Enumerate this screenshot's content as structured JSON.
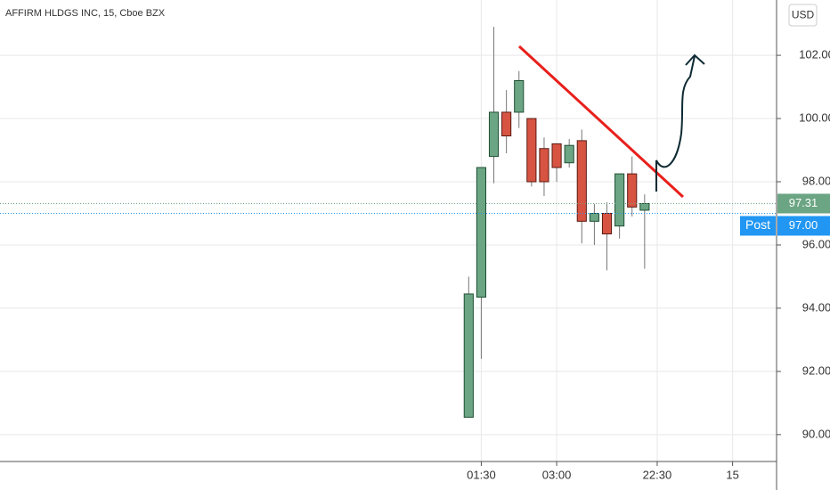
{
  "chart_data": {
    "type": "candlestick",
    "title": "AFFIRM HLDGS INC, 15, Cboe BZX",
    "currency": "USD",
    "x": [
      0,
      1,
      2,
      3,
      4,
      5,
      6,
      7,
      8,
      9,
      10,
      11,
      12,
      13,
      14
    ],
    "xlim": [
      -37.3,
      24.5
    ],
    "xticks": [
      {
        "value": 1,
        "label": "01:30"
      },
      {
        "value": 7,
        "label": "03:00"
      },
      {
        "value": 15,
        "label": "22:30"
      },
      {
        "value": 21,
        "label": "15"
      }
    ],
    "open": [
      90.55,
      94.35,
      98.8,
      100.2,
      100.2,
      100.0,
      99.05,
      99.2,
      98.6,
      99.3,
      96.75,
      97.0,
      96.6,
      98.25,
      97.1
    ],
    "high": [
      95.0,
      98.45,
      102.9,
      100.9,
      101.5,
      100.0,
      99.4,
      99.2,
      99.35,
      99.65,
      97.3,
      97.35,
      98.25,
      98.8,
      97.6
    ],
    "low": [
      90.55,
      92.4,
      97.95,
      98.9,
      99.7,
      97.85,
      97.55,
      98.0,
      98.45,
      96.05,
      96.0,
      95.2,
      96.2,
      96.9,
      95.25
    ],
    "close": [
      94.45,
      98.45,
      100.2,
      99.45,
      101.2,
      98.0,
      98.0,
      98.45,
      99.15,
      96.75,
      97.0,
      96.35,
      98.25,
      97.2,
      97.31
    ],
    "up_color": "#6ba583",
    "down_color": "#d75442",
    "ylim": [
      89.15,
      103.75
    ],
    "yticks": [
      {
        "value": 90,
        "label": "90.00"
      },
      {
        "value": 92,
        "label": "92.00"
      },
      {
        "value": 94,
        "label": "94.00"
      },
      {
        "value": 96,
        "label": "96.00"
      },
      {
        "value": 98,
        "label": "98.00"
      },
      {
        "value": 100,
        "label": "100.00"
      },
      {
        "value": 102,
        "label": "102.00"
      }
    ],
    "grid": true,
    "last_price": {
      "value": 97.31,
      "color": "#6ba583"
    },
    "post_price": {
      "name": "Post",
      "value": 97,
      "label": "97.00",
      "color": "#2196f3"
    }
  }
}
